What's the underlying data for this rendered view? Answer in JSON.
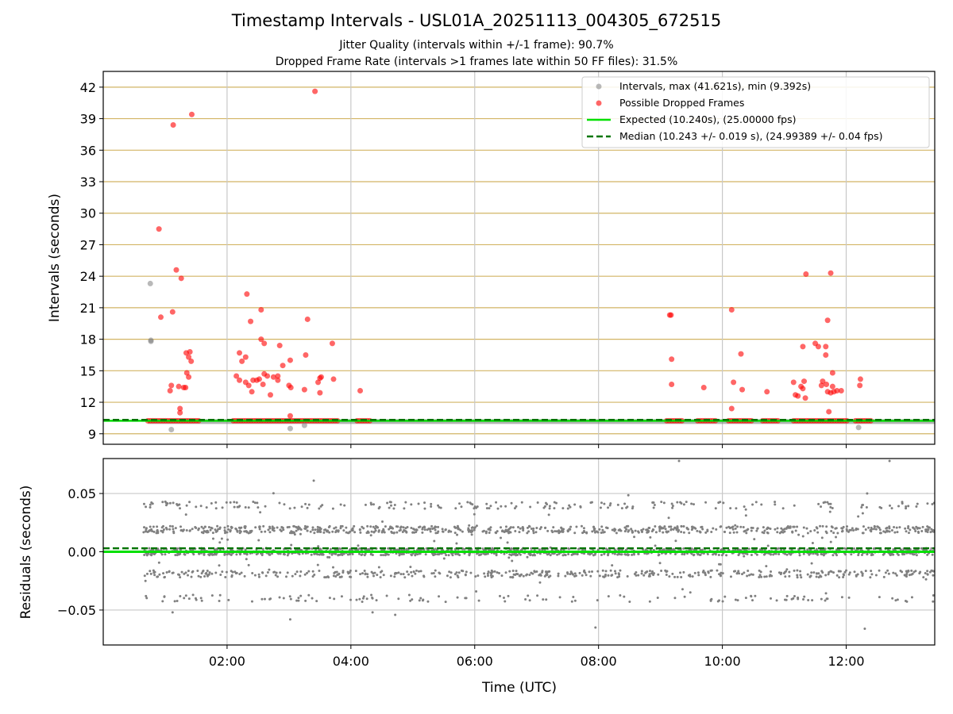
{
  "title": "Timestamp Intervals - USL01A_20251113_004305_672515",
  "subtitle_1": "Jitter Quality (intervals within +/-1 frame): 90.7%",
  "subtitle_2": "Dropped Frame Rate (intervals >1 frames late within 50 FF files): 31.5%",
  "colors": {
    "intervals": "#808080",
    "dropped": "#ff0000",
    "expected": "#00e000",
    "median": "#007500",
    "hgrid": "#d2b464",
    "vgrid": "#c8c8c8"
  },
  "chart_data": [
    {
      "type": "scatter",
      "ylabel": "Intervals (seconds)",
      "xlabel": "",
      "xlim_hours": [
        0.0,
        13.43
      ],
      "ylim": [
        8.0,
        43.5
      ],
      "yticks": [
        9,
        12,
        15,
        18,
        21,
        24,
        27,
        30,
        33,
        36,
        39,
        42
      ],
      "xticks": [
        "02:00",
        "04:00",
        "06:00",
        "08:00",
        "10:00",
        "12:00"
      ],
      "xtick_hours": [
        2,
        4,
        6,
        8,
        10,
        12
      ],
      "hgrid": true,
      "vgrid": true,
      "legend_position": "top-right",
      "legend": [
        "Intervals, max (41.621s), min (9.392s)",
        "Possible Dropped Frames",
        "Expected (10.240s), (25.00000 fps)",
        "Median (10.243 +/- 0.019 s), (24.99389 +/- 0.04 fps)"
      ],
      "expected": 10.24,
      "median": 10.243,
      "baseline_interval": 10.24,
      "baseline_span_hours": [
        0.72,
        13.43
      ],
      "dropped_baseline_segments_hours": [
        [
          0.72,
          1.55
        ],
        [
          2.1,
          3.82
        ],
        [
          4.1,
          4.32
        ],
        [
          9.1,
          9.35
        ],
        [
          9.6,
          9.9
        ],
        [
          10.1,
          10.5
        ],
        [
          10.65,
          10.9
        ],
        [
          11.15,
          12.05
        ],
        [
          12.15,
          12.42
        ]
      ],
      "series": [
        {
          "name": "Intervals",
          "points": [
            [
              0.76,
              23.3
            ],
            [
              0.77,
              17.9
            ],
            [
              0.77,
              17.8
            ],
            [
              1.1,
              9.4
            ],
            [
              3.02,
              9.5
            ],
            [
              3.25,
              9.8
            ],
            [
              12.2,
              9.6
            ]
          ]
        },
        {
          "name": "Possible Dropped Frames",
          "points": [
            [
              0.9,
              28.5
            ],
            [
              0.93,
              20.1
            ],
            [
              1.08,
              13.1
            ],
            [
              1.1,
              13.6
            ],
            [
              1.12,
              20.6
            ],
            [
              1.13,
              38.4
            ],
            [
              1.18,
              24.6
            ],
            [
              1.22,
              13.5
            ],
            [
              1.24,
              11.4
            ],
            [
              1.24,
              11.0
            ],
            [
              1.26,
              23.8
            ],
            [
              1.3,
              13.4
            ],
            [
              1.33,
              13.4
            ],
            [
              1.34,
              16.7
            ],
            [
              1.35,
              14.8
            ],
            [
              1.38,
              14.4
            ],
            [
              1.38,
              16.3
            ],
            [
              1.4,
              16.8
            ],
            [
              1.42,
              15.9
            ],
            [
              1.43,
              39.4
            ],
            [
              2.15,
              14.5
            ],
            [
              2.2,
              16.7
            ],
            [
              2.2,
              14.1
            ],
            [
              2.24,
              15.9
            ],
            [
              2.3,
              13.9
            ],
            [
              2.3,
              16.3
            ],
            [
              2.32,
              22.3
            ],
            [
              2.35,
              13.6
            ],
            [
              2.38,
              19.7
            ],
            [
              2.4,
              13.0
            ],
            [
              2.42,
              14.1
            ],
            [
              2.48,
              14.1
            ],
            [
              2.52,
              14.2
            ],
            [
              2.55,
              20.8
            ],
            [
              2.55,
              18.0
            ],
            [
              2.58,
              13.7
            ],
            [
              2.6,
              17.6
            ],
            [
              2.6,
              14.7
            ],
            [
              2.65,
              14.5
            ],
            [
              2.7,
              12.7
            ],
            [
              2.75,
              14.4
            ],
            [
              2.82,
              14.1
            ],
            [
              2.82,
              14.5
            ],
            [
              2.85,
              17.4
            ],
            [
              2.9,
              15.5
            ],
            [
              3.0,
              13.6
            ],
            [
              3.02,
              10.7
            ],
            [
              3.02,
              16.0
            ],
            [
              3.03,
              13.4
            ],
            [
              3.25,
              13.2
            ],
            [
              3.27,
              16.5
            ],
            [
              3.3,
              19.9
            ],
            [
              3.42,
              41.6
            ],
            [
              3.47,
              13.9
            ],
            [
              3.5,
              12.9
            ],
            [
              3.5,
              14.3
            ],
            [
              3.52,
              14.4
            ],
            [
              3.7,
              17.6
            ],
            [
              3.72,
              14.2
            ],
            [
              4.15,
              13.1
            ],
            [
              9.15,
              20.3
            ],
            [
              9.17,
              20.3
            ],
            [
              9.18,
              16.1
            ],
            [
              9.18,
              13.7
            ],
            [
              9.7,
              13.4
            ],
            [
              10.15,
              20.8
            ],
            [
              10.15,
              11.4
            ],
            [
              10.18,
              13.9
            ],
            [
              10.3,
              16.6
            ],
            [
              10.32,
              13.2
            ],
            [
              10.72,
              13.0
            ],
            [
              11.15,
              13.9
            ],
            [
              11.18,
              12.7
            ],
            [
              11.22,
              12.6
            ],
            [
              11.27,
              13.5
            ],
            [
              11.3,
              17.3
            ],
            [
              11.3,
              13.3
            ],
            [
              11.32,
              14.0
            ],
            [
              11.34,
              12.4
            ],
            [
              11.35,
              24.2
            ],
            [
              11.5,
              17.6
            ],
            [
              11.55,
              17.3
            ],
            [
              11.6,
              13.6
            ],
            [
              11.62,
              14.0
            ],
            [
              11.67,
              16.5
            ],
            [
              11.67,
              17.3
            ],
            [
              11.68,
              13.7
            ],
            [
              11.7,
              19.8
            ],
            [
              11.7,
              13.0
            ],
            [
              11.72,
              11.1
            ],
            [
              11.75,
              24.3
            ],
            [
              11.75,
              12.9
            ],
            [
              11.78,
              14.8
            ],
            [
              11.78,
              13.5
            ],
            [
              11.8,
              13.0
            ],
            [
              11.85,
              13.1
            ],
            [
              11.92,
              13.1
            ],
            [
              12.22,
              13.6
            ],
            [
              12.23,
              14.2
            ]
          ]
        }
      ]
    },
    {
      "type": "scatter",
      "ylabel": "Residuals (seconds)",
      "xlabel": "Time (UTC)",
      "xlim_hours": [
        0.0,
        13.43
      ],
      "ylim": [
        -0.08,
        0.08
      ],
      "yticks": [
        "−0.05",
        "0.00",
        "0.05"
      ],
      "ytick_values": [
        -0.05,
        0.0,
        0.05
      ],
      "xticks": [
        "02:00",
        "04:00",
        "06:00",
        "08:00",
        "10:00",
        "12:00"
      ],
      "xtick_hours": [
        2,
        4,
        6,
        8,
        10,
        12
      ],
      "hgrid": true,
      "vgrid": true,
      "expected": 0.0,
      "median": 0.003,
      "residual_span_hours": [
        0.65,
        13.43
      ],
      "residual_levels": [
        0.0,
        0.019,
        -0.019,
        0.04,
        -0.04
      ],
      "residual_extremes": [
        [
          3.4,
          0.061
        ],
        [
          3.02,
          -0.058
        ],
        [
          7.95,
          -0.065
        ],
        [
          9.3,
          0.078
        ],
        [
          12.3,
          -0.066
        ],
        [
          12.7,
          0.078
        ],
        [
          1.12,
          -0.052
        ],
        [
          4.35,
          -0.052
        ]
      ]
    }
  ]
}
